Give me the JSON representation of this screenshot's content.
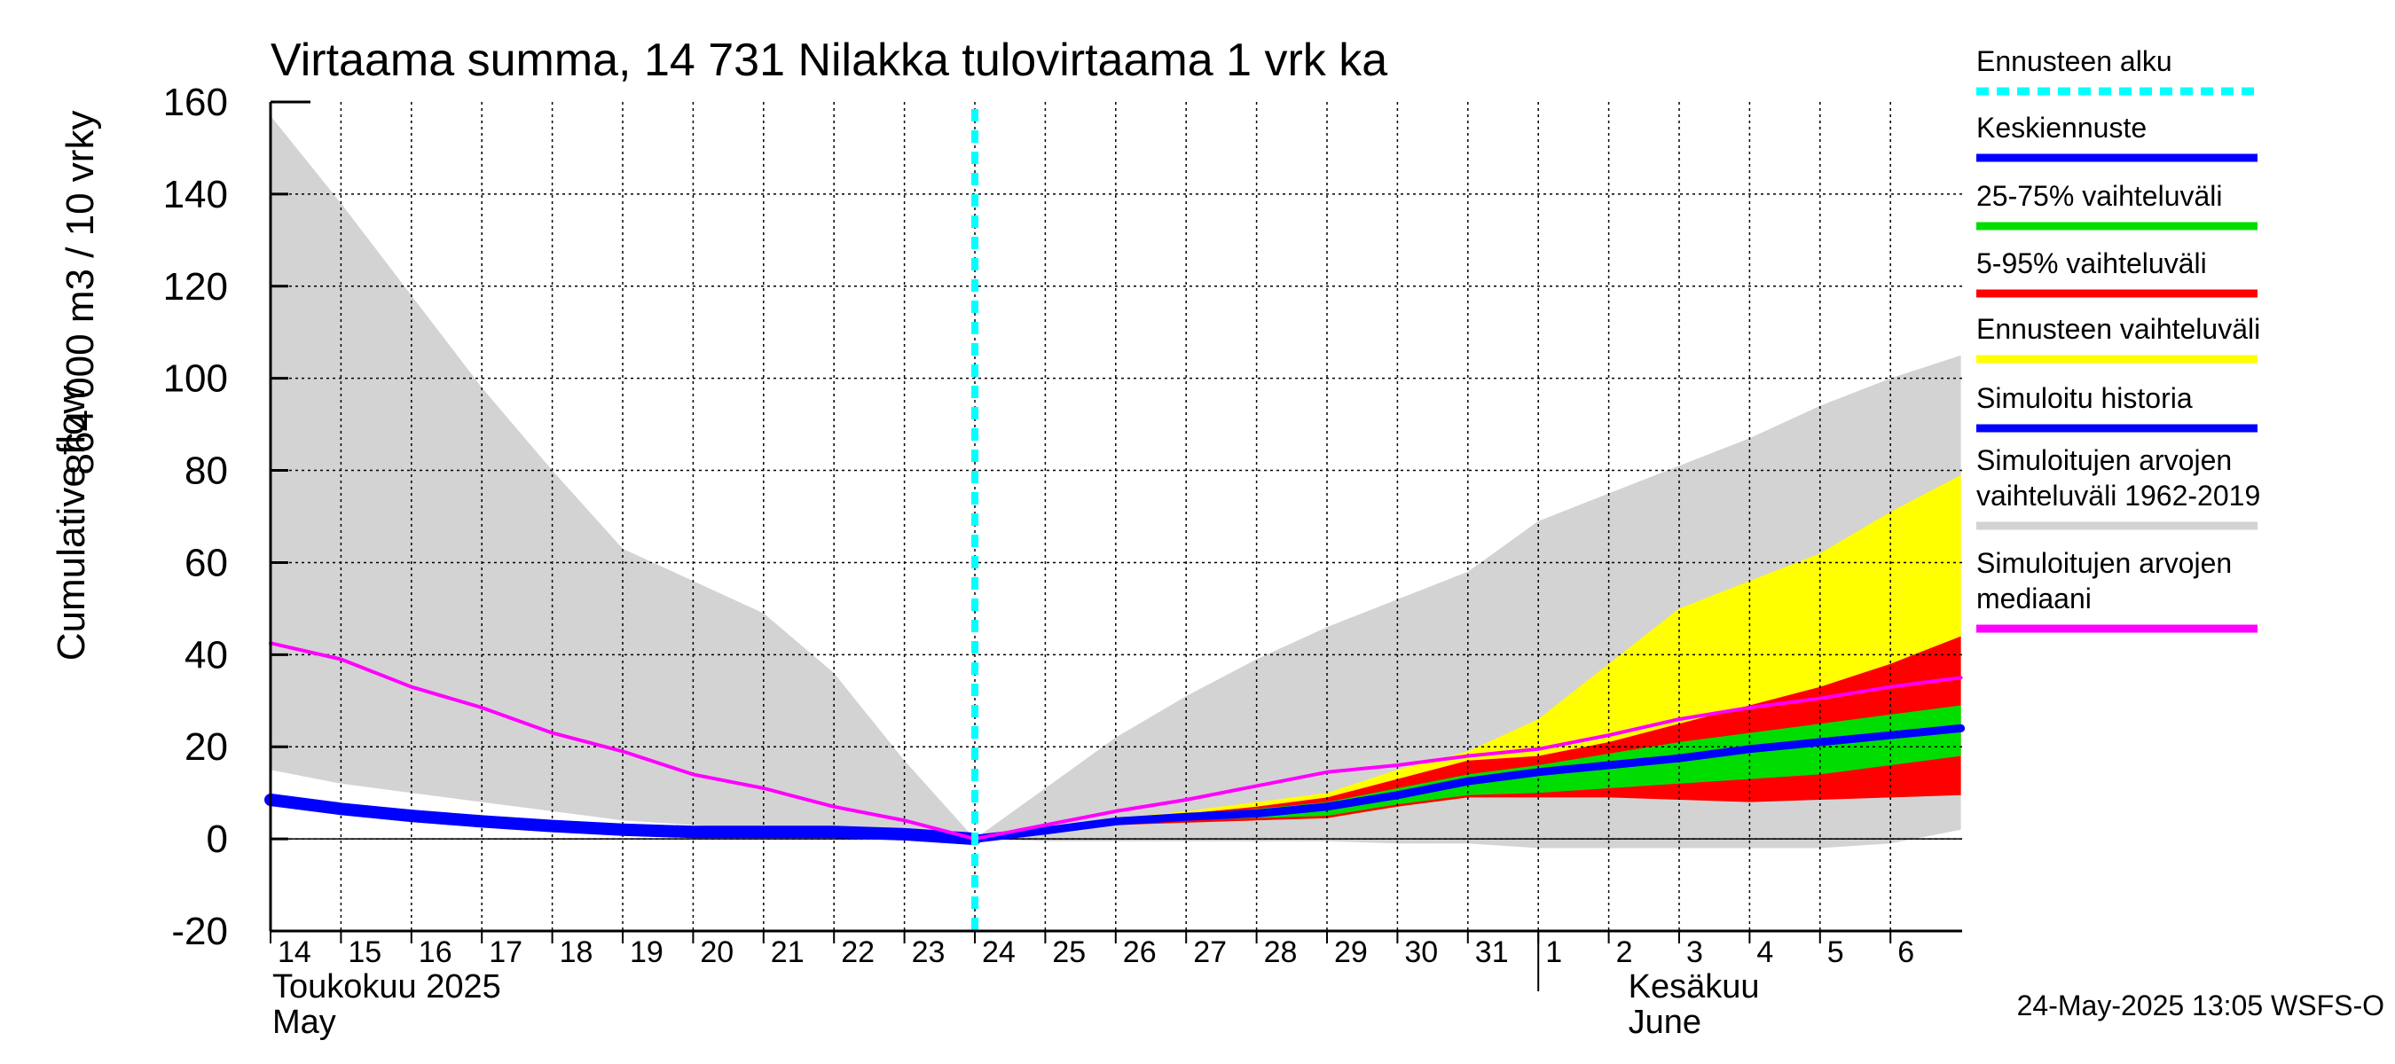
{
  "chart_data": {
    "type": "area",
    "title": "Virtaama summa, 14 731 Nilakka tulovirtaama 1 vrk ka",
    "ylabel_lines": [
      "Cumulative flow",
      "864 000 m3 / 10 vrky"
    ],
    "ylim": [
      -20,
      160
    ],
    "yticks": [
      -20,
      0,
      20,
      40,
      60,
      80,
      100,
      120,
      140,
      160
    ],
    "x_start": "2025-05-14",
    "x_end": "2025-06-07",
    "x_tick_labels": [
      "14",
      "15",
      "16",
      "17",
      "18",
      "19",
      "20",
      "21",
      "22",
      "23",
      "24",
      "25",
      "26",
      "27",
      "28",
      "29",
      "30",
      "31",
      "1",
      "2",
      "3",
      "4",
      "5",
      "6"
    ],
    "months": [
      {
        "line1": "Toukokuu  2025",
        "line2": "May"
      },
      {
        "line1": "Kesäkuu",
        "line2": "June"
      }
    ],
    "forecast_start": "2025-05-24",
    "series": [
      {
        "name": "Simuloitujen arvojen vaihteluväli 1962-2019",
        "color": "#d3d3d3",
        "x": [
          0,
          1,
          2,
          3,
          4,
          5,
          6,
          7,
          8,
          9,
          10,
          11,
          12,
          13,
          14,
          15,
          16,
          17,
          18,
          19,
          20,
          21,
          22,
          23,
          24
        ],
        "upper": [
          157,
          138,
          118,
          98,
          80,
          63,
          56,
          49,
          36,
          17,
          0,
          11,
          22,
          31,
          39,
          46,
          52,
          58,
          69,
          75,
          81,
          87,
          94,
          100,
          105
        ],
        "lower": [
          15,
          12,
          10,
          8,
          6,
          4,
          3,
          2,
          1,
          0.5,
          0,
          -0.5,
          -0.5,
          -0.5,
          -0.5,
          -0.5,
          -1,
          -1,
          -2,
          -2,
          -2,
          -2,
          -2,
          -1,
          2
        ]
      },
      {
        "name": "Ennusteen vaihteluväli",
        "color": "#ffff00",
        "x": [
          10,
          11,
          12,
          13,
          14,
          15,
          16,
          17,
          18,
          19,
          20,
          21,
          22,
          23,
          24
        ],
        "upper": [
          0,
          2,
          4.5,
          6,
          8,
          10,
          15,
          19,
          26,
          38,
          50,
          56,
          62,
          71,
          79
        ],
        "lower": [
          0,
          1.5,
          3,
          3.5,
          4,
          4.5,
          7,
          9,
          9,
          9,
          9,
          8.5,
          9,
          9.5,
          10
        ]
      },
      {
        "name": "5-95% vaihteluväli",
        "color": "#ff0000",
        "x": [
          10,
          11,
          12,
          13,
          14,
          15,
          16,
          17,
          18,
          19,
          20,
          21,
          22,
          23,
          24
        ],
        "upper": [
          0,
          2,
          4.3,
          5.5,
          7,
          9,
          13,
          17,
          18,
          21,
          25,
          29,
          33,
          38,
          44
        ],
        "lower": [
          0,
          1.5,
          3,
          3.5,
          4,
          4.5,
          7,
          9,
          9,
          9,
          8.5,
          8,
          8.5,
          9,
          9.5
        ]
      },
      {
        "name": "25-75% vaihteluväli",
        "color": "#00dd00",
        "x": [
          10,
          11,
          12,
          13,
          14,
          15,
          16,
          17,
          18,
          19,
          20,
          21,
          22,
          23,
          24
        ],
        "upper": [
          0,
          2,
          4,
          5,
          6.5,
          8,
          11,
          14,
          16,
          18.5,
          21,
          23,
          25,
          27,
          29
        ],
        "lower": [
          0,
          2,
          3.5,
          4,
          4.5,
          5,
          7.5,
          9.5,
          10,
          11,
          12,
          13,
          14,
          16,
          18
        ]
      },
      {
        "name": "Keskiennuste",
        "color": "#0000ff",
        "x": [
          10,
          11,
          12,
          13,
          14,
          15,
          16,
          17,
          18,
          19,
          20,
          21,
          22,
          23,
          24
        ],
        "values": [
          0,
          1.8,
          3.8,
          4.8,
          5.5,
          7,
          9.5,
          12.5,
          14.5,
          16,
          17.5,
          19.5,
          21,
          22.5,
          24
        ]
      },
      {
        "name": "Simuloitu historia",
        "color": "#0000ff",
        "x": [
          0,
          1,
          2,
          3,
          4,
          5,
          6,
          7,
          8,
          9,
          10
        ],
        "values": [
          8.5,
          6.5,
          5,
          3.8,
          2.8,
          2,
          1.5,
          1.5,
          1.5,
          1,
          0
        ]
      },
      {
        "name": "Simuloitujen arvojen mediaani",
        "color": "#ff00ff",
        "x": [
          0,
          1,
          2,
          3,
          4,
          5,
          6,
          7,
          8,
          9,
          10,
          11,
          12,
          13,
          14,
          15,
          16,
          17,
          18,
          19,
          20,
          21,
          22,
          23,
          24
        ],
        "values": [
          42.5,
          39,
          33,
          28.5,
          23,
          19,
          14,
          11,
          7,
          4,
          0,
          3,
          6,
          8.5,
          11.5,
          14.5,
          16,
          18,
          19.5,
          22.5,
          26,
          28.5,
          30.5,
          33,
          35
        ]
      }
    ],
    "legend": [
      {
        "label": "Ennusteen alku",
        "color": "#00ffff",
        "style": "dashed"
      },
      {
        "label": "Keskiennuste",
        "color": "#0000ff",
        "style": "solid"
      },
      {
        "label": "25-75% vaihteluväli",
        "color": "#00dd00",
        "style": "solid"
      },
      {
        "label": "5-95% vaihteluväli",
        "color": "#ff0000",
        "style": "solid"
      },
      {
        "label": "Ennusteen vaihteluväli",
        "color": "#ffff00",
        "style": "solid"
      },
      {
        "label": "Simuloitu historia",
        "color": "#0000ff",
        "style": "solid"
      },
      {
        "label": "Simuloitujen arvojen vaihteluväli 1962-2019",
        "label_lines": [
          "Simuloitujen arvojen",
          "vaihteluväli 1962-2019"
        ],
        "color": "#d3d3d3",
        "style": "solid"
      },
      {
        "label": "Simuloitujen arvojen mediaani",
        "label_lines": [
          "Simuloitujen arvojen",
          "mediaani"
        ],
        "color": "#ff00ff",
        "style": "solid"
      }
    ],
    "grid": true,
    "legend_position": "right"
  },
  "footer": "24-May-2025 13:05 WSFS-O"
}
